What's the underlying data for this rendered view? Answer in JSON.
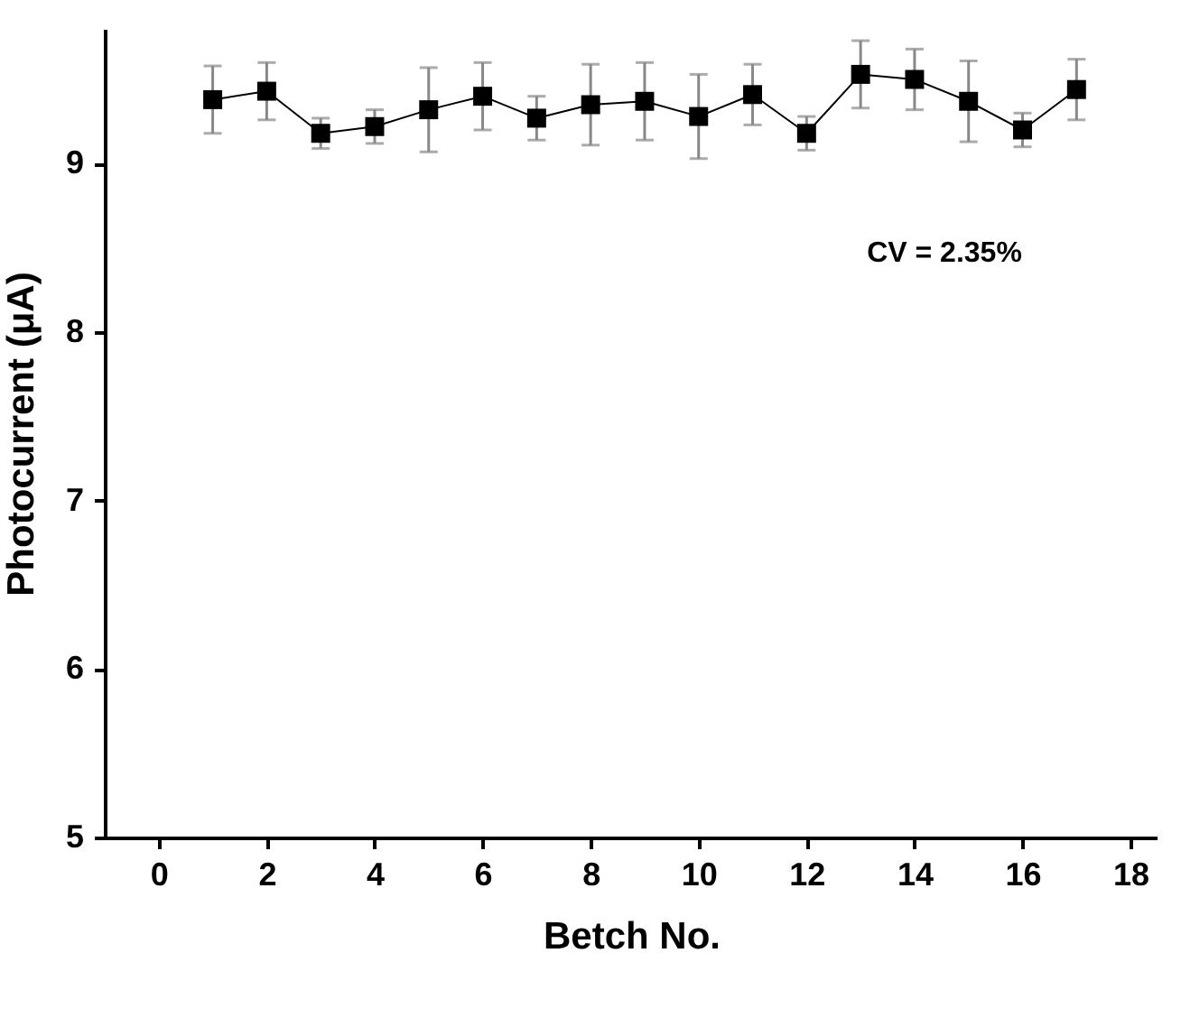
{
  "chart_data": {
    "type": "line",
    "xlabel": "Betch No.",
    "ylabel": "Photocurrent (μA)",
    "x": [
      1,
      2,
      3,
      4,
      5,
      6,
      7,
      8,
      9,
      10,
      11,
      12,
      13,
      14,
      15,
      16,
      17
    ],
    "series": [
      {
        "color": "#000000",
        "values": [
          9.38,
          9.43,
          9.18,
          9.22,
          9.32,
          9.4,
          9.27,
          9.35,
          9.37,
          9.28,
          9.41,
          9.18,
          9.53,
          9.5,
          9.37,
          9.2,
          9.44
        ],
        "errors": [
          0.2,
          0.17,
          0.09,
          0.1,
          0.25,
          0.2,
          0.13,
          0.24,
          0.23,
          0.25,
          0.18,
          0.1,
          0.2,
          0.18,
          0.24,
          0.1,
          0.18
        ]
      }
    ],
    "annotations": [
      "CV = 2.35%"
    ],
    "xlim": [
      -1,
      18.5
    ],
    "xticks": [
      0,
      2,
      4,
      6,
      8,
      10,
      12,
      14,
      16,
      18
    ],
    "ylim": [
      5,
      9.8
    ],
    "yticks": [
      5,
      6,
      7,
      8,
      9
    ],
    "marker": "square",
    "line_style": "solid",
    "grid": false
  }
}
